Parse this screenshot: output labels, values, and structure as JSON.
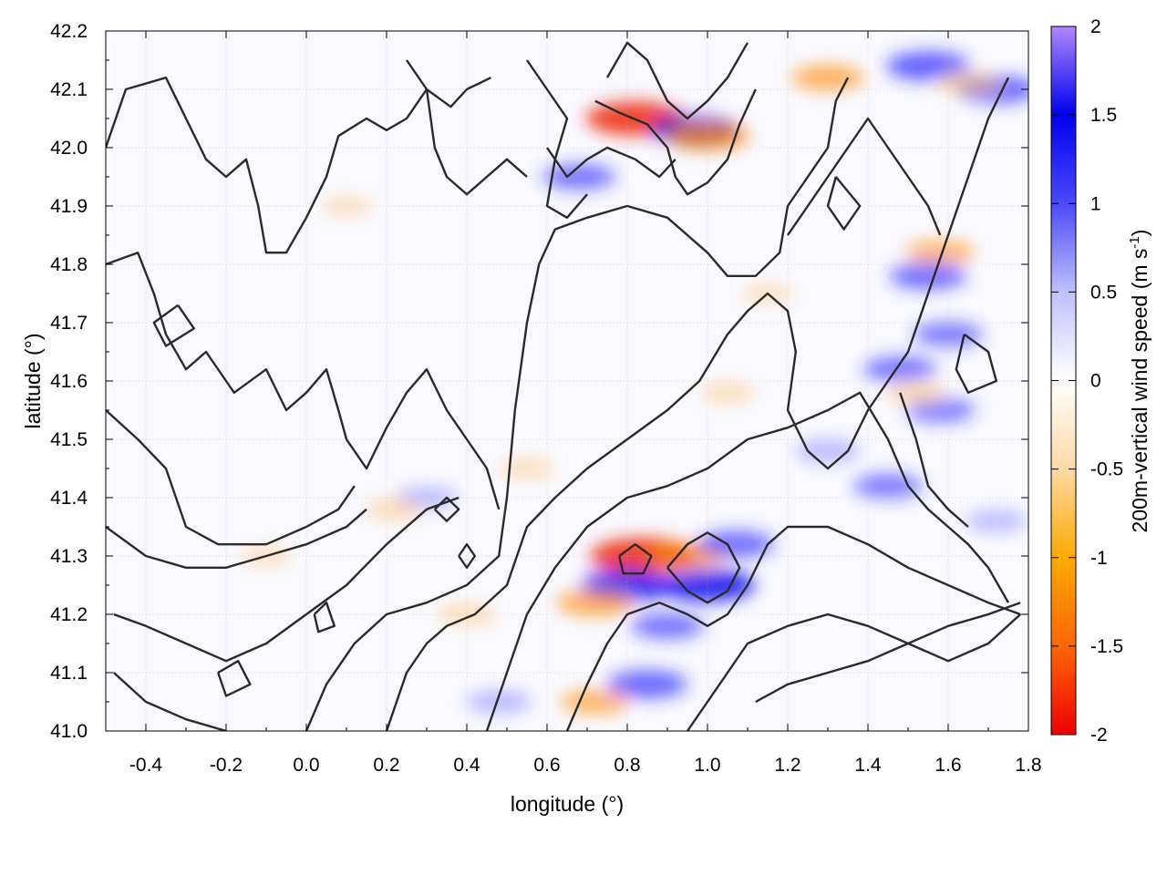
{
  "chart_data": {
    "type": "heatmap",
    "title": "",
    "xlabel": "longitude (°)",
    "ylabel": "latitude (°)",
    "xlim": [
      -0.5,
      1.8
    ],
    "ylim": [
      41.0,
      42.2
    ],
    "x_ticks": [
      "-0.4",
      "-0.2",
      "0.0",
      "0.2",
      "0.4",
      "0.6",
      "0.8",
      "1.0",
      "1.2",
      "1.4",
      "1.6",
      "1.8"
    ],
    "x_tick_values": [
      -0.4,
      -0.2,
      0.0,
      0.2,
      0.4,
      0.6,
      0.8,
      1.0,
      1.2,
      1.4,
      1.6,
      1.8
    ],
    "y_ticks": [
      "41.0",
      "41.1",
      "41.2",
      "41.3",
      "41.4",
      "41.5",
      "41.6",
      "41.7",
      "41.8",
      "41.9",
      "42.0",
      "42.1",
      "42.2"
    ],
    "y_tick_values": [
      41.0,
      41.1,
      41.2,
      41.3,
      41.4,
      41.5,
      41.6,
      41.7,
      41.8,
      41.9,
      42.0,
      42.1,
      42.2
    ],
    "grid": true,
    "colorbar": {
      "label": "200m-vertical wind speed (m s",
      "label_superscript": "-1",
      "label_close": ")",
      "range": [
        -2,
        2
      ],
      "ticks": [
        "2",
        "1.5",
        "1",
        "0.5",
        "0",
        "-0.5",
        "-1",
        "-1.5",
        "-2"
      ],
      "tick_values": [
        2,
        1.5,
        1,
        0.5,
        0,
        -0.5,
        -1,
        -1.5,
        -2
      ],
      "colors": [
        "#ee0000",
        "#ff8800",
        "#ffb133",
        "#fff0dc",
        "#ffffff",
        "#c8c8ff",
        "#6262ff",
        "#0000ee",
        "#b088ff"
      ]
    },
    "hotspots": [
      {
        "lon": 0.82,
        "lat": 42.05,
        "value": -1.6
      },
      {
        "lon": 0.97,
        "lat": 42.03,
        "value": 1.3
      },
      {
        "lon": 1.0,
        "lat": 42.02,
        "value": -1.2
      },
      {
        "lon": 1.55,
        "lat": 42.14,
        "value": 1.2
      },
      {
        "lon": 1.72,
        "lat": 42.1,
        "value": 1.1
      },
      {
        "lon": 1.3,
        "lat": 42.12,
        "value": -0.9
      },
      {
        "lon": 1.65,
        "lat": 42.11,
        "value": -0.7
      },
      {
        "lon": 0.68,
        "lat": 41.95,
        "value": 0.9
      },
      {
        "lon": 1.58,
        "lat": 41.82,
        "value": -0.8
      },
      {
        "lon": 1.55,
        "lat": 41.78,
        "value": 1.0
      },
      {
        "lon": 1.6,
        "lat": 41.68,
        "value": 0.8
      },
      {
        "lon": 1.48,
        "lat": 41.62,
        "value": 0.9
      },
      {
        "lon": 1.58,
        "lat": 41.55,
        "value": 0.8
      },
      {
        "lon": 1.52,
        "lat": 41.58,
        "value": -0.6
      },
      {
        "lon": 1.3,
        "lat": 41.48,
        "value": 0.7
      },
      {
        "lon": 1.45,
        "lat": 41.42,
        "value": 0.8
      },
      {
        "lon": 1.72,
        "lat": 41.36,
        "value": 0.6
      },
      {
        "lon": 0.84,
        "lat": 41.3,
        "value": -1.8
      },
      {
        "lon": 0.8,
        "lat": 41.25,
        "value": 1.4
      },
      {
        "lon": 1.0,
        "lat": 41.25,
        "value": 1.5
      },
      {
        "lon": 0.95,
        "lat": 41.3,
        "value": -1.0
      },
      {
        "lon": 1.07,
        "lat": 41.32,
        "value": 1.0
      },
      {
        "lon": 0.72,
        "lat": 41.22,
        "value": -1.0
      },
      {
        "lon": 0.9,
        "lat": 41.18,
        "value": 0.9
      },
      {
        "lon": 0.85,
        "lat": 41.08,
        "value": 1.1
      },
      {
        "lon": 0.72,
        "lat": 41.05,
        "value": -0.8
      },
      {
        "lon": 0.48,
        "lat": 41.05,
        "value": 0.7
      },
      {
        "lon": 0.3,
        "lat": 41.4,
        "value": 0.6
      },
      {
        "lon": 0.22,
        "lat": 41.38,
        "value": -0.5
      },
      {
        "lon": 0.4,
        "lat": 41.2,
        "value": -0.5
      },
      {
        "lon": 0.55,
        "lat": 41.45,
        "value": -0.4
      },
      {
        "lon": 1.05,
        "lat": 41.58,
        "value": -0.4
      },
      {
        "lon": 1.15,
        "lat": 41.75,
        "value": -0.3
      },
      {
        "lon": -0.1,
        "lat": 41.3,
        "value": -0.3
      },
      {
        "lon": 0.1,
        "lat": 41.9,
        "value": -0.3
      }
    ],
    "contours": [
      [
        [
          -0.5,
          42.0
        ],
        [
          -0.45,
          42.1
        ],
        [
          -0.35,
          42.12
        ],
        [
          -0.3,
          42.05
        ],
        [
          -0.25,
          41.98
        ],
        [
          -0.2,
          41.95
        ],
        [
          -0.15,
          41.98
        ],
        [
          -0.12,
          41.9
        ],
        [
          -0.1,
          41.82
        ],
        [
          -0.05,
          41.82
        ],
        [
          0.0,
          41.88
        ],
        [
          0.05,
          41.95
        ],
        [
          0.08,
          42.02
        ],
        [
          0.15,
          42.05
        ],
        [
          0.2,
          42.03
        ],
        [
          0.25,
          42.05
        ],
        [
          0.3,
          42.1
        ],
        [
          0.36,
          42.07
        ],
        [
          0.4,
          42.1
        ],
        [
          0.46,
          42.12
        ]
      ],
      [
        [
          -0.5,
          41.8
        ],
        [
          -0.42,
          41.82
        ],
        [
          -0.38,
          41.75
        ],
        [
          -0.35,
          41.68
        ],
        [
          -0.3,
          41.62
        ],
        [
          -0.25,
          41.65
        ],
        [
          -0.18,
          41.58
        ],
        [
          -0.1,
          41.62
        ],
        [
          -0.05,
          41.55
        ],
        [
          0.0,
          41.58
        ],
        [
          0.05,
          41.62
        ],
        [
          0.08,
          41.55
        ],
        [
          0.1,
          41.5
        ],
        [
          0.15,
          41.45
        ],
        [
          0.2,
          41.52
        ],
        [
          0.25,
          41.58
        ],
        [
          0.3,
          41.62
        ],
        [
          0.35,
          41.55
        ],
        [
          0.4,
          41.5
        ],
        [
          0.45,
          41.45
        ],
        [
          0.48,
          41.38
        ]
      ],
      [
        [
          -0.5,
          41.55
        ],
        [
          -0.42,
          41.5
        ],
        [
          -0.35,
          41.45
        ],
        [
          -0.3,
          41.35
        ],
        [
          -0.22,
          41.32
        ],
        [
          -0.1,
          41.32
        ],
        [
          0.0,
          41.35
        ],
        [
          0.08,
          41.38
        ],
        [
          0.12,
          41.42
        ]
      ],
      [
        [
          -0.5,
          41.35
        ],
        [
          -0.4,
          41.3
        ],
        [
          -0.3,
          41.28
        ],
        [
          -0.2,
          41.28
        ],
        [
          -0.1,
          41.3
        ],
        [
          0.0,
          41.32
        ],
        [
          0.1,
          41.35
        ],
        [
          0.15,
          41.38
        ]
      ],
      [
        [
          -0.48,
          41.2
        ],
        [
          -0.4,
          41.18
        ],
        [
          -0.3,
          41.15
        ],
        [
          -0.2,
          41.12
        ],
        [
          -0.1,
          41.15
        ],
        [
          0.0,
          41.2
        ],
        [
          0.1,
          41.25
        ],
        [
          0.2,
          41.32
        ],
        [
          0.3,
          41.38
        ],
        [
          0.38,
          41.4
        ]
      ],
      [
        [
          -0.48,
          41.1
        ],
        [
          -0.4,
          41.05
        ],
        [
          -0.3,
          41.02
        ],
        [
          -0.2,
          41.0
        ]
      ],
      [
        [
          0.0,
          41.0
        ],
        [
          0.05,
          41.08
        ],
        [
          0.12,
          41.15
        ],
        [
          0.2,
          41.2
        ],
        [
          0.3,
          41.22
        ],
        [
          0.4,
          41.25
        ],
        [
          0.48,
          41.3
        ],
        [
          0.5,
          41.4
        ],
        [
          0.52,
          41.55
        ],
        [
          0.55,
          41.7
        ],
        [
          0.58,
          41.8
        ],
        [
          0.62,
          41.86
        ],
        [
          0.7,
          41.88
        ],
        [
          0.8,
          41.9
        ],
        [
          0.9,
          41.88
        ],
        [
          1.0,
          41.82
        ],
        [
          1.05,
          41.78
        ],
        [
          1.12,
          41.78
        ],
        [
          1.18,
          41.82
        ],
        [
          1.2,
          41.9
        ],
        [
          1.25,
          41.95
        ],
        [
          1.3,
          42.0
        ],
        [
          1.32,
          42.08
        ],
        [
          1.35,
          42.12
        ]
      ],
      [
        [
          0.2,
          41.0
        ],
        [
          0.25,
          41.1
        ],
        [
          0.3,
          41.15
        ],
        [
          0.35,
          41.18
        ],
        [
          0.42,
          41.2
        ],
        [
          0.5,
          41.25
        ],
        [
          0.55,
          41.35
        ],
        [
          0.62,
          41.4
        ],
        [
          0.7,
          41.45
        ],
        [
          0.8,
          41.5
        ],
        [
          0.9,
          41.55
        ],
        [
          0.98,
          41.6
        ],
        [
          1.05,
          41.68
        ],
        [
          1.1,
          41.72
        ],
        [
          1.15,
          41.75
        ],
        [
          1.2,
          41.72
        ],
        [
          1.22,
          41.65
        ],
        [
          1.2,
          41.55
        ],
        [
          1.25,
          41.48
        ],
        [
          1.3,
          41.45
        ],
        [
          1.35,
          41.48
        ],
        [
          1.4,
          41.55
        ],
        [
          1.45,
          41.6
        ],
        [
          1.5,
          41.65
        ],
        [
          1.55,
          41.75
        ],
        [
          1.6,
          41.85
        ],
        [
          1.65,
          41.95
        ],
        [
          1.7,
          42.05
        ],
        [
          1.75,
          42.12
        ]
      ],
      [
        [
          0.45,
          41.0
        ],
        [
          0.5,
          41.1
        ],
        [
          0.55,
          41.2
        ],
        [
          0.62,
          41.28
        ],
        [
          0.7,
          41.35
        ],
        [
          0.8,
          41.4
        ],
        [
          0.9,
          41.42
        ],
        [
          1.0,
          41.45
        ],
        [
          1.1,
          41.5
        ],
        [
          1.2,
          41.52
        ],
        [
          1.3,
          41.55
        ],
        [
          1.38,
          41.58
        ],
        [
          1.45,
          41.5
        ],
        [
          1.5,
          41.42
        ],
        [
          1.55,
          41.38
        ],
        [
          1.6,
          41.35
        ],
        [
          1.65,
          41.32
        ],
        [
          1.7,
          41.28
        ],
        [
          1.75,
          41.22
        ]
      ],
      [
        [
          0.65,
          41.0
        ],
        [
          0.7,
          41.08
        ],
        [
          0.75,
          41.15
        ],
        [
          0.8,
          41.2
        ],
        [
          0.88,
          41.22
        ],
        [
          0.95,
          41.2
        ],
        [
          1.0,
          41.18
        ],
        [
          1.05,
          41.2
        ],
        [
          1.1,
          41.25
        ],
        [
          1.15,
          41.32
        ],
        [
          1.2,
          41.35
        ],
        [
          1.3,
          41.35
        ],
        [
          1.4,
          41.32
        ],
        [
          1.5,
          41.28
        ],
        [
          1.6,
          41.25
        ],
        [
          1.7,
          41.22
        ],
        [
          1.78,
          41.2
        ]
      ],
      [
        [
          0.95,
          41.0
        ],
        [
          1.0,
          41.05
        ],
        [
          1.05,
          41.1
        ],
        [
          1.1,
          41.15
        ],
        [
          1.2,
          41.18
        ],
        [
          1.3,
          41.2
        ],
        [
          1.4,
          41.18
        ],
        [
          1.5,
          41.15
        ],
        [
          1.6,
          41.12
        ],
        [
          1.7,
          41.15
        ],
        [
          1.78,
          41.2
        ]
      ],
      [
        [
          1.12,
          41.05
        ],
        [
          1.2,
          41.08
        ],
        [
          1.3,
          41.1
        ],
        [
          1.4,
          41.12
        ],
        [
          1.5,
          41.15
        ],
        [
          1.6,
          41.18
        ],
        [
          1.7,
          41.2
        ],
        [
          1.78,
          41.22
        ]
      ],
      [
        [
          0.75,
          42.12
        ],
        [
          0.8,
          42.18
        ],
        [
          0.85,
          42.15
        ],
        [
          0.9,
          42.08
        ],
        [
          0.95,
          42.05
        ],
        [
          1.0,
          42.08
        ],
        [
          1.05,
          42.12
        ],
        [
          1.1,
          42.18
        ]
      ],
      [
        [
          0.72,
          42.08
        ],
        [
          0.78,
          42.06
        ],
        [
          0.85,
          42.04
        ],
        [
          0.9,
          42.0
        ],
        [
          0.92,
          41.95
        ],
        [
          0.95,
          41.92
        ],
        [
          1.0,
          41.94
        ],
        [
          1.05,
          41.98
        ],
        [
          1.08,
          42.04
        ],
        [
          1.12,
          42.1
        ]
      ],
      [
        [
          0.6,
          42.0
        ],
        [
          0.65,
          41.95
        ],
        [
          0.7,
          41.98
        ],
        [
          0.75,
          42.0
        ],
        [
          0.82,
          41.98
        ],
        [
          0.88,
          41.95
        ],
        [
          0.92,
          41.98
        ]
      ],
      [
        [
          0.55,
          42.15
        ],
        [
          0.6,
          42.1
        ],
        [
          0.65,
          42.05
        ],
        [
          0.62,
          41.98
        ],
        [
          0.6,
          41.9
        ],
        [
          0.65,
          41.88
        ],
        [
          0.7,
          41.92
        ]
      ],
      [
        [
          0.25,
          42.15
        ],
        [
          0.3,
          42.1
        ],
        [
          0.32,
          42.0
        ],
        [
          0.35,
          41.95
        ],
        [
          0.4,
          41.92
        ],
        [
          0.45,
          41.95
        ],
        [
          0.5,
          41.98
        ],
        [
          0.55,
          41.95
        ]
      ],
      [
        [
          1.2,
          41.85
        ],
        [
          1.25,
          41.9
        ],
        [
          1.3,
          41.95
        ],
        [
          1.35,
          42.0
        ],
        [
          1.4,
          42.05
        ],
        [
          1.45,
          42.0
        ],
        [
          1.5,
          41.95
        ],
        [
          1.55,
          41.9
        ],
        [
          1.58,
          41.85
        ]
      ],
      [
        [
          1.48,
          41.58
        ],
        [
          1.52,
          41.5
        ],
        [
          1.55,
          41.42
        ],
        [
          1.6,
          41.38
        ],
        [
          1.65,
          41.35
        ]
      ],
      [
        [
          0.9,
          41.28
        ],
        [
          0.95,
          41.32
        ],
        [
          1.0,
          41.34
        ],
        [
          1.05,
          41.32
        ],
        [
          1.08,
          41.28
        ],
        [
          1.05,
          41.24
        ],
        [
          1.0,
          41.22
        ],
        [
          0.95,
          41.24
        ],
        [
          0.9,
          41.28
        ]
      ],
      [
        [
          0.78,
          41.3
        ],
        [
          0.82,
          41.32
        ],
        [
          0.86,
          41.3
        ],
        [
          0.84,
          41.27
        ],
        [
          0.79,
          41.27
        ],
        [
          0.78,
          41.3
        ]
      ],
      [
        [
          0.38,
          41.3
        ],
        [
          0.4,
          41.32
        ],
        [
          0.42,
          41.3
        ],
        [
          0.4,
          41.28
        ],
        [
          0.38,
          41.3
        ]
      ],
      [
        [
          0.32,
          41.38
        ],
        [
          0.35,
          41.4
        ],
        [
          0.38,
          41.38
        ],
        [
          0.35,
          41.36
        ],
        [
          0.32,
          41.38
        ]
      ],
      [
        [
          -0.32,
          41.73
        ],
        [
          -0.28,
          41.69
        ],
        [
          -0.35,
          41.66
        ],
        [
          -0.38,
          41.7
        ],
        [
          -0.32,
          41.73
        ]
      ],
      [
        [
          1.64,
          41.68
        ],
        [
          1.7,
          41.65
        ],
        [
          1.72,
          41.6
        ],
        [
          1.65,
          41.58
        ],
        [
          1.62,
          41.62
        ],
        [
          1.64,
          41.68
        ]
      ],
      [
        [
          1.32,
          41.95
        ],
        [
          1.38,
          41.9
        ],
        [
          1.34,
          41.86
        ],
        [
          1.3,
          41.9
        ],
        [
          1.32,
          41.95
        ]
      ],
      [
        [
          -0.22,
          41.1
        ],
        [
          -0.17,
          41.12
        ],
        [
          -0.14,
          41.08
        ],
        [
          -0.2,
          41.06
        ],
        [
          -0.22,
          41.1
        ]
      ],
      [
        [
          0.02,
          41.2
        ],
        [
          0.05,
          41.22
        ],
        [
          0.07,
          41.18
        ],
        [
          0.03,
          41.17
        ],
        [
          0.02,
          41.2
        ]
      ]
    ]
  }
}
